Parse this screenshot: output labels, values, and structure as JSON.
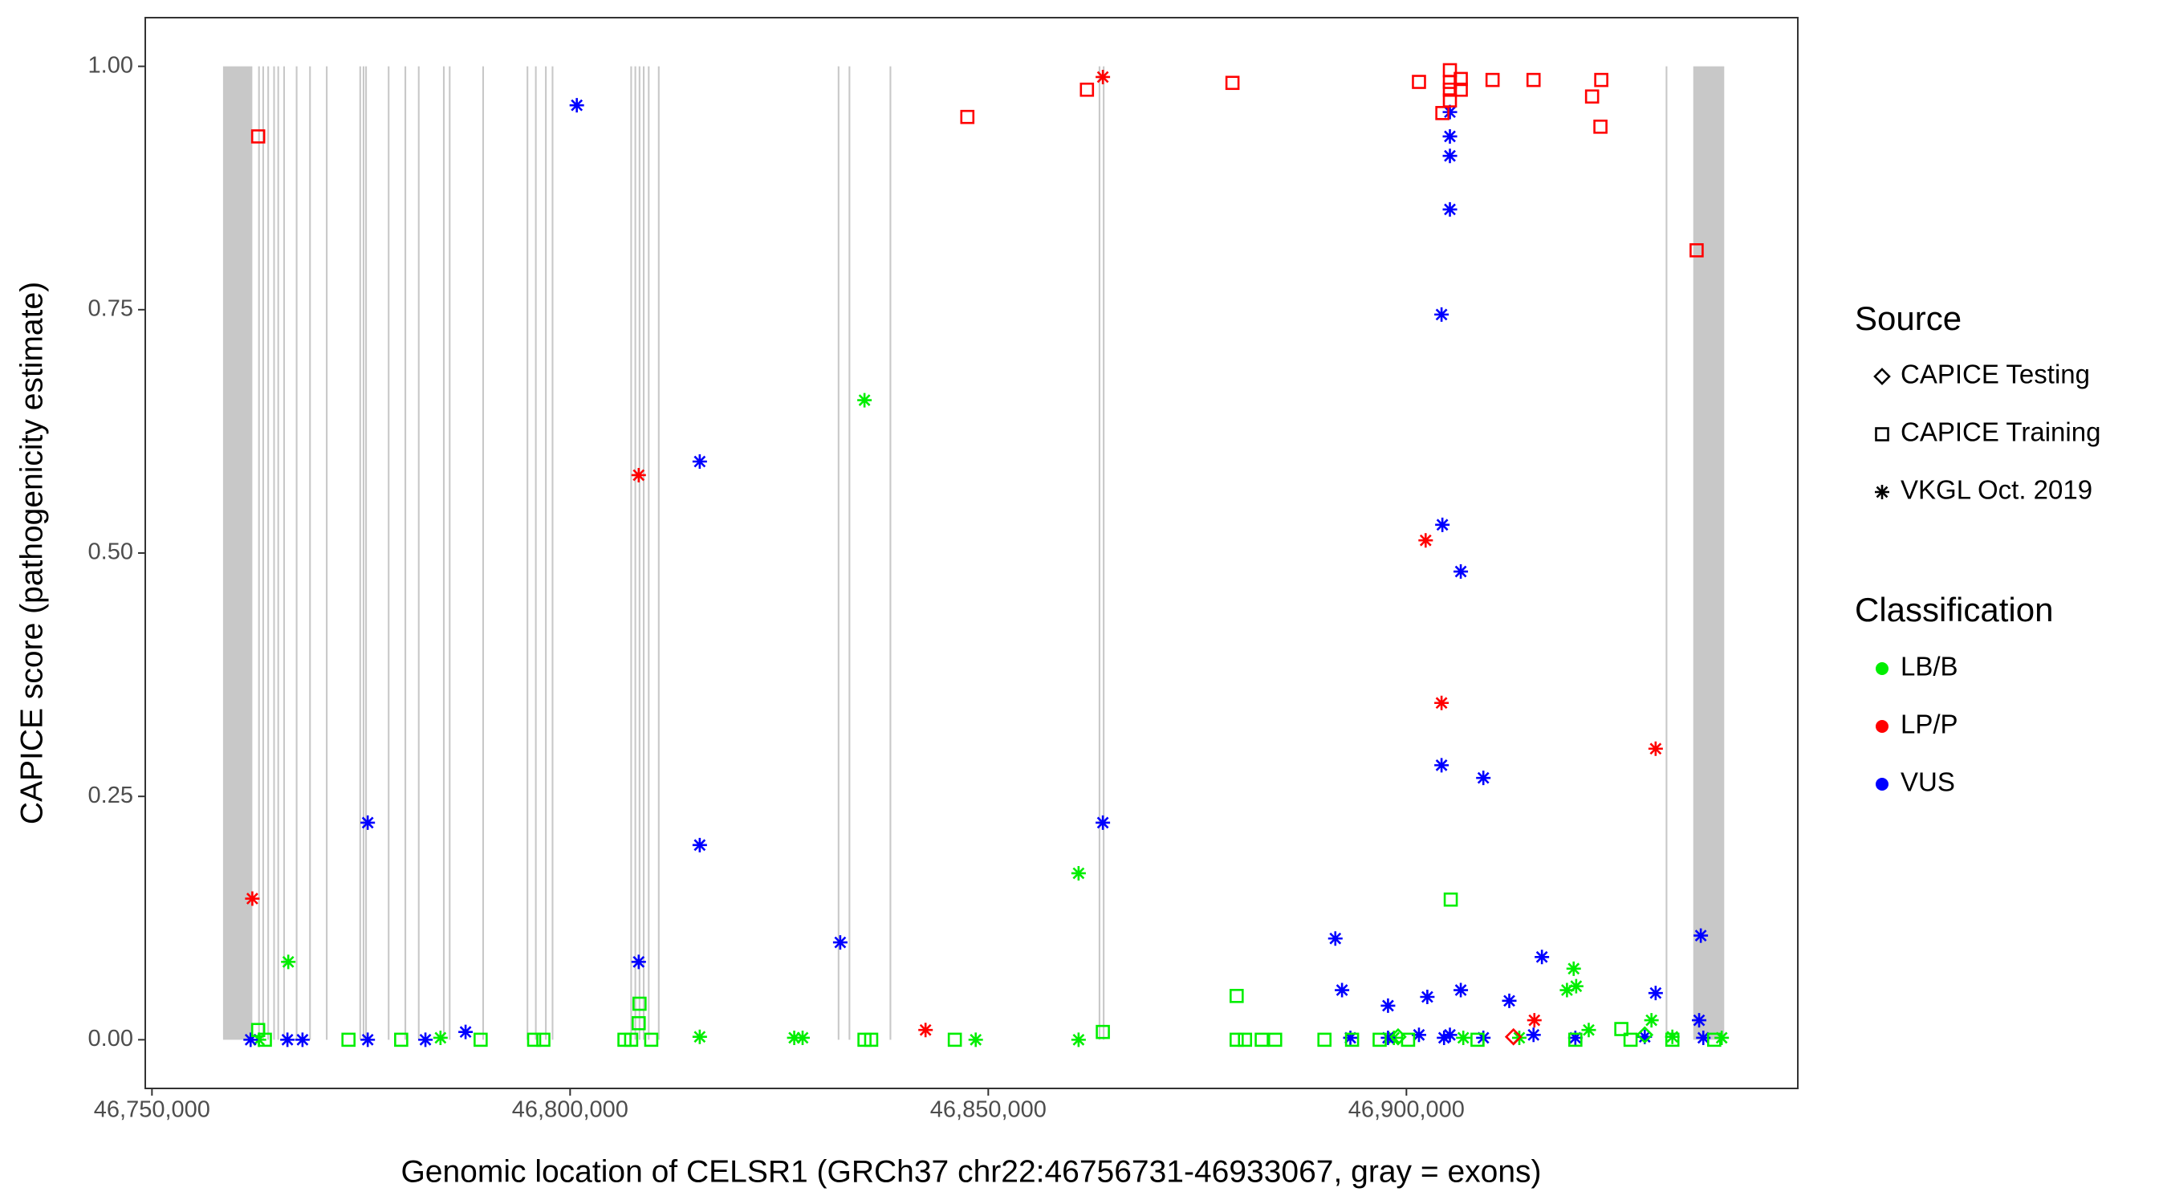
{
  "chart_data": {
    "type": "scatter",
    "x_label": "Genomic location of CELSR1 (GRCh37 chr22:46756731-46933067, gray = exons)",
    "y_label": "CAPICE score (pathogenicity estimate)",
    "xlim": [
      46749200,
      46946800
    ],
    "ylim": [
      -0.05,
      1.05
    ],
    "xticks": [
      {
        "value": 46750000,
        "label": "46,750,000"
      },
      {
        "value": 46800000,
        "label": "46,800,000"
      },
      {
        "value": 46850000,
        "label": "46,850,000"
      },
      {
        "value": 46900000,
        "label": "46,900,000"
      }
    ],
    "yticks": [
      {
        "value": 0,
        "label": "0.00"
      },
      {
        "value": 0.25,
        "label": "0.25"
      },
      {
        "value": 0.5,
        "label": "0.50"
      },
      {
        "value": 0.75,
        "label": "0.75"
      },
      {
        "value": 1,
        "label": "1.00"
      }
    ],
    "exon_color": "#c8c8c8",
    "exons": [
      [
        46758500,
        46762000
      ],
      [
        46762700,
        46762900
      ],
      [
        46763200,
        46763400
      ],
      [
        46763800,
        46764000
      ],
      [
        46764500,
        46764700
      ],
      [
        46765000,
        46765200
      ],
      [
        46765700,
        46765900
      ],
      [
        46767200,
        46767400
      ],
      [
        46768800,
        46769000
      ],
      [
        46770800,
        46771000
      ],
      [
        46774800,
        46775000
      ],
      [
        46775200,
        46775400
      ],
      [
        46775500,
        46775700
      ],
      [
        46778200,
        46778400
      ],
      [
        46780200,
        46780400
      ],
      [
        46781800,
        46782000
      ],
      [
        46784800,
        46785000
      ],
      [
        46785500,
        46785700
      ],
      [
        46789500,
        46789700
      ],
      [
        46794800,
        46795000
      ],
      [
        46795800,
        46796000
      ],
      [
        46797000,
        46797200
      ],
      [
        46797800,
        46798000
      ],
      [
        46807200,
        46807400
      ],
      [
        46807700,
        46807900
      ],
      [
        46808200,
        46808400
      ],
      [
        46808700,
        46808900
      ],
      [
        46809300,
        46809500
      ],
      [
        46810500,
        46810700
      ],
      [
        46832000,
        46832200
      ],
      [
        46833300,
        46833500
      ],
      [
        46838200,
        46838400
      ],
      [
        46863200,
        46863400
      ],
      [
        46863700,
        46863900
      ],
      [
        46931000,
        46931200
      ],
      [
        46934300,
        46938000
      ]
    ],
    "legend": {
      "source": {
        "title": "Source",
        "entries": [
          {
            "label": "CAPICE Testing",
            "shape": "diamond"
          },
          {
            "label": "CAPICE Training",
            "shape": "square"
          },
          {
            "label": "VKGL Oct. 2019",
            "shape": "asterisk"
          }
        ]
      },
      "classification": {
        "title": "Classification",
        "entries": [
          {
            "label": "LB/B",
            "color": "#00ee00"
          },
          {
            "label": "LP/P",
            "color": "#ff0000"
          },
          {
            "label": "VUS",
            "color": "#0000ff"
          }
        ]
      }
    },
    "series": [
      {
        "classification": "LB/B",
        "source": "VKGL Oct. 2019",
        "x": [
          46766300,
          46835200,
          46860800,
          46920000,
          46919200,
          46920300,
          46929300,
          46762800,
          46784500,
          46815500,
          46826800,
          46827800,
          46848500,
          46860800,
          46898500,
          46906800,
          46913500,
          46921800,
          46931800,
          46937700
        ],
        "values": [
          0.08,
          0.657,
          0.171,
          0.073,
          0.051,
          0.055,
          0.02,
          0,
          0.002,
          0.003,
          0.002,
          0.002,
          0,
          0,
          0.002,
          0.002,
          0.002,
          0.01,
          0.003,
          0.002
        ]
      },
      {
        "classification": "LP/P",
        "source": "VKGL Oct. 2019",
        "x": [
          46762000,
          46808200,
          46842500,
          46863700,
          46902300,
          46904200,
          46915300,
          46929800
        ],
        "values": [
          0.145,
          0.58,
          0.01,
          0.989,
          0.513,
          0.346,
          0.02,
          0.299
        ]
      },
      {
        "classification": "VUS",
        "source": "VKGL Oct. 2019",
        "x": [
          46800800,
          46775800,
          46808200,
          46815500,
          46815500,
          46832300,
          46863700,
          46905200,
          46905200,
          46905200,
          46905200,
          46904200,
          46904300,
          46906500,
          46904200,
          46909200,
          46891500,
          46892300,
          46897800,
          46902500,
          46906500,
          46912300,
          46916200,
          46929800,
          46935200,
          46935000,
          46761800,
          46766200,
          46768000,
          46775800,
          46782700,
          46787500,
          46893300,
          46897800,
          46901500,
          46904500,
          46905200,
          46909200,
          46915200,
          46920200,
          46928500,
          46935500
        ],
        "values": [
          0.96,
          0.223,
          0.08,
          0.594,
          0.2,
          0.1,
          0.223,
          0.953,
          0.928,
          0.908,
          0.853,
          0.745,
          0.529,
          0.481,
          0.282,
          0.269,
          0.104,
          0.051,
          0.035,
          0.044,
          0.051,
          0.04,
          0.085,
          0.048,
          0.107,
          0.02,
          0,
          0,
          0,
          0,
          0,
          0.008,
          0.002,
          0.002,
          0.005,
          0.002,
          0.005,
          0.002,
          0.005,
          0.002,
          0.003,
          0.002
        ]
      },
      {
        "classification": "LP/P",
        "source": "CAPICE Training",
        "x": [
          46762700,
          46847500,
          46861800,
          46879200,
          46901500,
          46904300,
          46905200,
          46905200,
          46905200,
          46905200,
          46906500,
          46906500,
          46910300,
          46915200,
          46922200,
          46923300,
          46923200,
          46934700
        ],
        "values": [
          0.928,
          0.948,
          0.976,
          0.983,
          0.984,
          0.952,
          0.996,
          0.984,
          0.976,
          0.965,
          0.987,
          0.976,
          0.986,
          0.986,
          0.969,
          0.986,
          0.938,
          0.811
        ]
      },
      {
        "classification": "LB/B",
        "source": "CAPICE Training",
        "x": [
          46905300,
          46879700,
          46808300,
          46808200,
          46762700,
          46925700,
          46763500,
          46773500,
          46779800,
          46789300,
          46795700,
          46796800,
          46806500,
          46807300,
          46809700,
          46835200,
          46836000,
          46846000,
          46863700,
          46879700,
          46880700,
          46882700,
          46884300,
          46890200,
          46893500,
          46896800,
          46900200,
          46908500,
          46920200,
          46926800,
          46931800,
          46936800
        ],
        "values": [
          0.144,
          0.045,
          0.037,
          0.017,
          0.01,
          0.011,
          0,
          0,
          0,
          0,
          0,
          0,
          0,
          0,
          0,
          0,
          0,
          0,
          0.008,
          0,
          0,
          0,
          0,
          0,
          0,
          0,
          0,
          0,
          0,
          0,
          0,
          0
        ]
      },
      {
        "classification": "LP/P",
        "source": "CAPICE Testing",
        "x": [
          46912800
        ],
        "values": [
          0.003
        ]
      },
      {
        "classification": "LB/B",
        "source": "CAPICE Testing",
        "x": [
          46899000,
          46928500
        ],
        "values": [
          0.003,
          0.005
        ]
      }
    ]
  }
}
